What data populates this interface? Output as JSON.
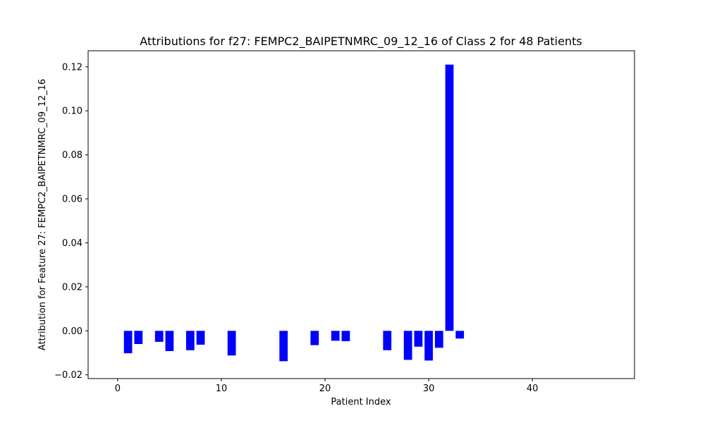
{
  "chart_data": {
    "type": "bar",
    "title": "Attributions for f27: FEMPC2_BAIPETNMRC_09_12_16 of Class 2 for 48 Patients",
    "xlabel": "Patient Index",
    "ylabel": "Attribution for Feature 27: FEMPC2_BAIPETNMRC_09_12_16",
    "xlim": [
      -2.85,
      49.85
    ],
    "ylim": [
      -0.0217,
      0.1273
    ],
    "xticks": [
      0,
      10,
      20,
      30,
      40
    ],
    "yticks": [
      -0.02,
      0.0,
      0.02,
      0.04,
      0.06,
      0.08,
      0.1,
      0.12
    ],
    "ytick_labels": [
      "−0.02",
      "0.00",
      "0.02",
      "0.04",
      "0.06",
      "0.08",
      "0.10",
      "0.12"
    ],
    "bar_color": "#0000ff",
    "grid": false,
    "x": [
      0,
      1,
      2,
      3,
      4,
      5,
      6,
      7,
      8,
      9,
      10,
      11,
      12,
      13,
      14,
      15,
      16,
      17,
      18,
      19,
      20,
      21,
      22,
      23,
      24,
      25,
      26,
      27,
      28,
      29,
      30,
      31,
      32,
      33,
      34,
      35,
      36,
      37,
      38,
      39,
      40,
      41,
      42,
      43,
      44,
      45,
      46,
      47
    ],
    "values": [
      0,
      -0.0102,
      -0.006,
      0,
      -0.005,
      -0.0092,
      0,
      -0.0088,
      -0.0063,
      0,
      0,
      -0.0112,
      0,
      0,
      0,
      0,
      -0.0138,
      0,
      0,
      -0.0065,
      0,
      -0.0045,
      -0.0047,
      0,
      0,
      0,
      -0.0088,
      0,
      -0.0132,
      -0.0072,
      -0.0135,
      -0.0077,
      0.121,
      -0.0035,
      0,
      0,
      0,
      0,
      0,
      0,
      0,
      0,
      0,
      0,
      0,
      0,
      0,
      0
    ]
  }
}
